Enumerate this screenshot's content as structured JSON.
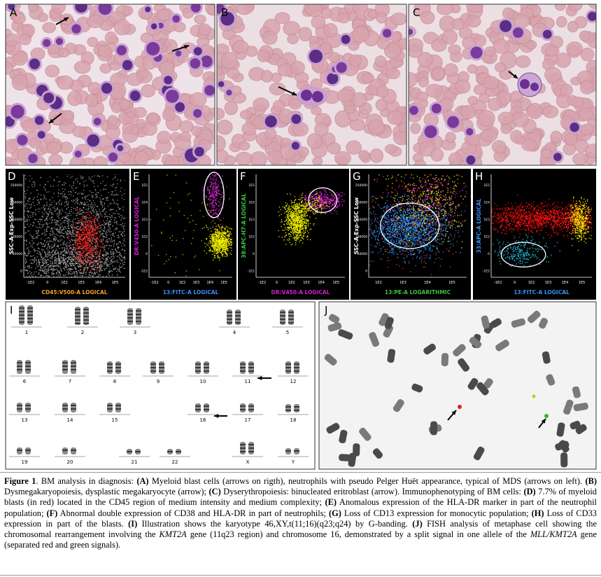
{
  "panels": [
    {
      "label": "A"
    },
    {
      "label": "B"
    },
    {
      "label": "C"
    }
  ],
  "flow_panels": [
    {
      "label": "D",
      "y_label": "SSC-A Exp-SSC Low",
      "x_label": "CD45:V500-A LOGICAL",
      "y_label_color": "#ffffff",
      "x_label_color": "#f0a030",
      "y_ticks": [
        "0",
        "50000",
        "100000",
        "150000",
        "200000",
        "250000"
      ],
      "x_ticks": [
        "-1E2",
        "0",
        "1E2",
        "1E3",
        "1E4",
        "1E5"
      ]
    },
    {
      "label": "E",
      "y_label": "DR:V450-A LOGICAL",
      "x_label": "13:FITC-A LOGICAL",
      "y_label_color": "#d020d0",
      "x_label_color": "#3a8ff0",
      "y_ticks": [
        "-1E2",
        "0",
        "1E2",
        "1E3",
        "1E4",
        "1E5"
      ],
      "x_ticks": [
        "-1E2",
        "0",
        "1E2",
        "1E3",
        "1E4",
        "1E5"
      ]
    },
    {
      "label": "F",
      "y_label": "38:APC-H7-A LOGICAL",
      "x_label": "DR:V450-A LOGICAL",
      "y_label_color": "#40c040",
      "x_label_color": "#d020d0",
      "y_ticks": [
        "-1E2",
        "0",
        "1E2",
        "1E3",
        "1E4",
        "1E5"
      ],
      "x_ticks": [
        "-1E2",
        "0",
        "1E2",
        "1E3",
        "1E4",
        "1E5"
      ]
    },
    {
      "label": "G",
      "y_label": "SSC-A Exp-SSC Low",
      "x_label": "13:PE-A LOGARITHMIC",
      "y_label_color": "#ffffff",
      "x_label_color": "#40c040",
      "y_ticks": [
        "0",
        "50000",
        "100000",
        "150000",
        "200000",
        "250000"
      ],
      "x_ticks": [
        "1E2",
        "1E3",
        "1E4",
        "1E5"
      ]
    },
    {
      "label": "H",
      "y_label": "33:APC-A LOGICAL",
      "x_label": "13:FITC-A LOGICAL",
      "y_label_color": "#3a8ff0",
      "x_label_color": "#3a8ff0",
      "y_ticks": [
        "-1E2",
        "0",
        "1E2",
        "1E3",
        "1E4",
        "1E5"
      ],
      "x_ticks": [
        "-1E2",
        "0",
        "1E2",
        "1E3",
        "1E4",
        "1E5"
      ]
    }
  ],
  "karyotype": {
    "label": "I",
    "chromosomes": [
      "1",
      "2",
      "3",
      "4",
      "5",
      "6",
      "7",
      "8",
      "9",
      "10",
      "11",
      "12",
      "13",
      "14",
      "15",
      "16",
      "17",
      "18",
      "19",
      "20",
      "21",
      "22",
      "X",
      "Y"
    ]
  },
  "fish": {
    "label": "J"
  },
  "caption": [
    {
      "text": "Figure 1",
      "style": "bold"
    },
    {
      "text": ". BM analysis in diagnosis: ",
      "style": "plain"
    },
    {
      "text": "(A)",
      "style": "bold"
    },
    {
      "text": " Myeloid blast cells (arrows on rigth), neutrophils with pseudo Pelger Huët appearance, typical of MDS (arrows on left). ",
      "style": "plain"
    },
    {
      "text": "(B)",
      "style": "bold"
    },
    {
      "text": " Dysmegakaryopoiesis, dysplastic megakaryocyte (arrow); ",
      "style": "plain"
    },
    {
      "text": "(C)",
      "style": "bold"
    },
    {
      "text": " Dyserythropoiesis: binucleated eritroblast (arrow). Immunophenotyping of BM cells: ",
      "style": "plain"
    },
    {
      "text": "(D)",
      "style": "bold"
    },
    {
      "text": " 7.7% of myeloid blasts (in red) located in the CD45 region of medium intensity and medium complexity; ",
      "style": "plain"
    },
    {
      "text": "(E)",
      "style": "bold"
    },
    {
      "text": " Anomalous expression of the HLA-DR marker in part of the neutrophil population; ",
      "style": "plain"
    },
    {
      "text": "(F)",
      "style": "bold"
    },
    {
      "text": " Abnormal double expression of CD38 and HLA-DR in part of neutrophils; ",
      "style": "plain"
    },
    {
      "text": "(G)",
      "style": "bold"
    },
    {
      "text": " Loss of CD13 expression for monocytic population; ",
      "style": "plain"
    },
    {
      "text": "(H)",
      "style": "bold"
    },
    {
      "text": " Loss of CD33 expression in part of the blasts. ",
      "style": "plain"
    },
    {
      "text": "(I)",
      "style": "bold"
    },
    {
      "text": " Illustration shows the karyotype 46,XY,t(11;16)(q23;q24) by G-banding. ",
      "style": "plain"
    },
    {
      "text": "(J)",
      "style": "bold"
    },
    {
      "text": " FISH analysis of metaphase cell showing the chromosomal rearrangement involving the ",
      "style": "plain"
    },
    {
      "text": "KMT2A",
      "style": "italic"
    },
    {
      "text": " gene (11q23 region) and chromosome 16, demonstrated by a split signal in one allele of the ",
      "style": "plain"
    },
    {
      "text": "MLL/KMT2A",
      "style": "italic"
    },
    {
      "text": " gene (separated red and green signals).",
      "style": "plain"
    }
  ]
}
